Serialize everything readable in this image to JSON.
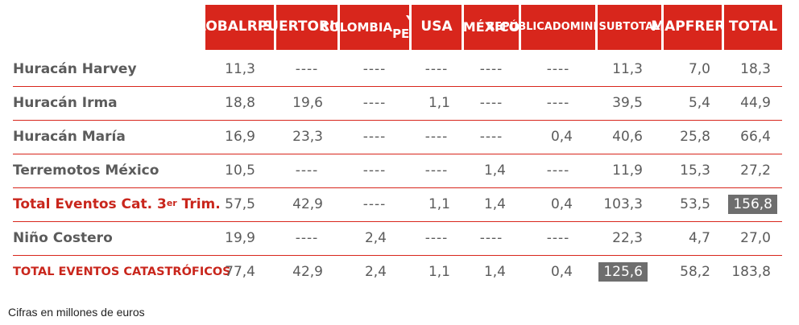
{
  "columns": [
    {
      "label": "GLOBAL RISKS",
      "lines": [
        "GLOBAL",
        "RISKS"
      ]
    },
    {
      "label": "PUERTO RICO",
      "lines": [
        "PUERTO",
        "RICO"
      ]
    },
    {
      "label": "COLOMBIA Y PERÚ",
      "lines": [
        "COLOMBIA",
        "Y PERÚ"
      ]
    },
    {
      "label": "USA",
      "lines": [
        "USA"
      ]
    },
    {
      "label": "MÉXICO",
      "lines": [
        "MÉXICO"
      ]
    },
    {
      "label": "REPÚBLICA DOMINICANA",
      "lines": [
        "REPÚBLICA",
        "DOMINICANA"
      ]
    },
    {
      "label": "SUBTOTAL",
      "lines": [
        "SUBTOTAL"
      ]
    },
    {
      "label": "MAPFRE RE",
      "lines": [
        "MAPFRE",
        "RE"
      ]
    },
    {
      "label": "TOTAL",
      "lines": [
        "TOTAL"
      ]
    }
  ],
  "rows": [
    {
      "label": "Huracán Harvey",
      "values": [
        "11,3",
        "----",
        "----",
        "----",
        "----",
        "----",
        "11,3",
        "7,0",
        "18,3"
      ]
    },
    {
      "label": "Huracán Irma",
      "values": [
        "18,8",
        "19,6",
        "----",
        "1,1",
        "----",
        "----",
        "39,5",
        "5,4",
        "44,9"
      ]
    },
    {
      "label": "Huracán María",
      "values": [
        "16,9",
        "23,3",
        "----",
        "----",
        "----",
        "0,4",
        "40,6",
        "25,8",
        "66,4"
      ]
    },
    {
      "label": "Terremotos México",
      "values": [
        "10,5",
        "----",
        "----",
        "----",
        "1,4",
        "----",
        "11,9",
        "15,3",
        "27,2"
      ]
    },
    {
      "label_main": "Total Eventos Cat. 3",
      "label_sup": "er",
      "label_end": " Trim.",
      "values": [
        "57,5",
        "42,9",
        "----",
        "1,1",
        "1,4",
        "0,4",
        "103,3",
        "53,5",
        "156,8"
      ]
    },
    {
      "label": "Niño Costero",
      "values": [
        "19,9",
        "----",
        "2,4",
        "----",
        "----",
        "----",
        "22,3",
        "4,7",
        "27,0"
      ]
    },
    {
      "label": "TOTAL EVENTOS CATASTRÓFICOS",
      "values": [
        "77,4",
        "42,9",
        "2,4",
        "1,1",
        "1,4",
        "0,4",
        "125,6",
        "58,2",
        "183,8"
      ]
    }
  ],
  "footnote": "Cifras en millones de euros",
  "colors": {
    "header_red": "#d8261c",
    "highlight_gray": "#6e6e6e",
    "text_gray": "#5b5b5b"
  }
}
